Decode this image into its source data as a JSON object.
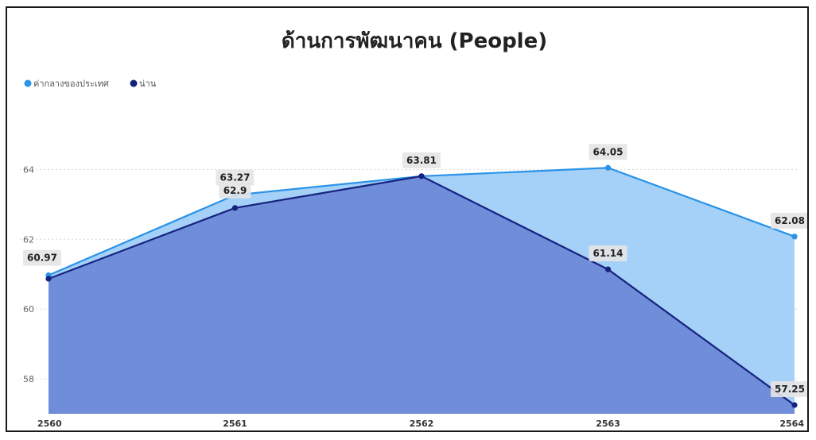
{
  "chart_data": {
    "type": "area",
    "title": "ด้านการพัฒนาคน (People)",
    "xlabel": "",
    "ylabel": "",
    "categories": [
      "2560",
      "2561",
      "2562",
      "2563",
      "2564"
    ],
    "y_ticks": [
      "58",
      "60",
      "62",
      "64"
    ],
    "ylim": [
      57.0,
      65.9
    ],
    "grid": true,
    "legend_position": "top-left",
    "series": [
      {
        "name": "ค่ากลางของประเทศ",
        "values": [
          60.97,
          63.27,
          63.81,
          64.05,
          62.08
        ],
        "labels": [
          "60.97",
          "63.27",
          "63.81",
          "64.05",
          "62.08"
        ],
        "line_color": "#2a93e8",
        "fill_color": "#a5d0f7"
      },
      {
        "name": "น่าน",
        "values": [
          60.87,
          62.9,
          63.81,
          61.14,
          57.25
        ],
        "labels": [
          "",
          "62.9",
          "",
          "61.14",
          "57.25"
        ],
        "line_color": "#16237e",
        "fill_color": "#6b89d6"
      }
    ]
  }
}
